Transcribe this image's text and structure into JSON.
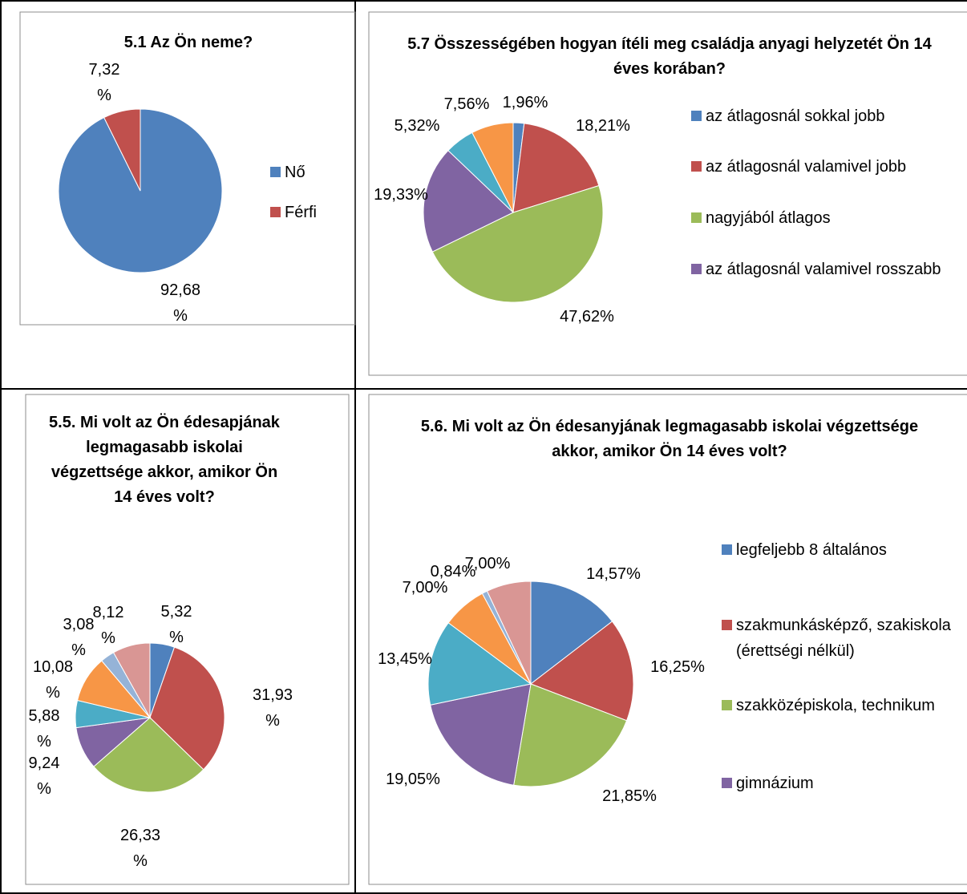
{
  "chart_data": [
    {
      "type": "pie",
      "title": "5.1 Az Ön neme?",
      "categories": [
        "Nő",
        "Férfi"
      ],
      "values": [
        92.68,
        7.32
      ],
      "value_labels": [
        "92,68 %",
        "7,32 %"
      ],
      "colors": [
        "#4f81bd",
        "#c0504d"
      ],
      "legend": "right"
    },
    {
      "type": "pie",
      "title": "5.7 Összességében hogyan ítéli meg családja anyagi helyzetét Ön 14 éves korában?",
      "categories": [
        "az átlagosnál sokkal jobb",
        "az átlagosnál valamivel jobb",
        "nagyjából átlagos",
        "az átlagosnál valamivel rosszabb",
        null,
        null
      ],
      "values": [
        1.96,
        18.21,
        47.62,
        19.33,
        5.32,
        7.56
      ],
      "value_labels": [
        "1,96%",
        "18,21%",
        "47,62%",
        "19,33%",
        "5,32%",
        "7,56%"
      ],
      "colors": [
        "#4f81bd",
        "#c0504d",
        "#9bbb59",
        "#8064a2",
        "#4bacc6",
        "#f79646"
      ],
      "legend": "right"
    },
    {
      "type": "pie",
      "title": "5.5. Mi volt az Ön édesapjának legmagasabb iskolai végzettsége akkor, amikor Ön 14 éves volt?",
      "categories": [
        null,
        null,
        null,
        null,
        null,
        null,
        null,
        null
      ],
      "values": [
        5.32,
        31.93,
        26.33,
        9.24,
        5.88,
        10.08,
        3.08,
        8.12
      ],
      "value_labels": [
        "5,32 %",
        "31,93 %",
        "26,33 %",
        "9,24 %",
        "5,88 %",
        "10,08 %",
        "3,08 %",
        "8,12 %"
      ],
      "colors": [
        "#4f81bd",
        "#c0504d",
        "#9bbb59",
        "#8064a2",
        "#4bacc6",
        "#f79646",
        "#95b3d7",
        "#d99694"
      ]
    },
    {
      "type": "pie",
      "title": "5.6. Mi volt az Ön édesanyjának legmagasabb iskolai végzettsége akkor, amikor Ön 14 éves volt?",
      "categories": [
        "legfeljebb 8 általános",
        "szakmunkásképző, szakiskola (érettségi nélkül)",
        "szakközépiskola, technikum",
        "gimnázium",
        null,
        null,
        null,
        null
      ],
      "values": [
        14.57,
        16.25,
        21.85,
        19.05,
        13.45,
        7.0,
        0.84,
        7.0
      ],
      "value_labels": [
        "14,57%",
        "16,25%",
        "21,85%",
        "19,05%",
        "13,45%",
        "7,00%",
        "0,84%",
        "7,00%"
      ],
      "colors": [
        "#4f81bd",
        "#c0504d",
        "#9bbb59",
        "#8064a2",
        "#4bacc6",
        "#f79646",
        "#95b3d7",
        "#d99694"
      ],
      "legend": "right"
    }
  ]
}
